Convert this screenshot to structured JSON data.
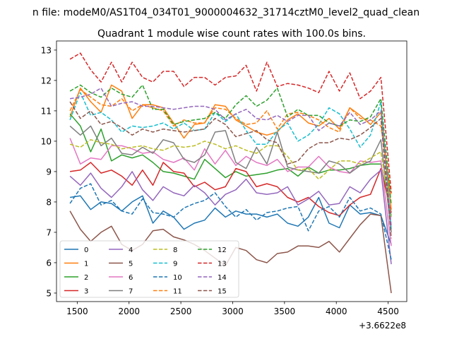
{
  "chart_data": {
    "type": "line",
    "suptitle": "n file: modeM0/AS1T04_034T01_9000004632_31714cztM0_level2_quad_clean",
    "title": "Quadrant 1 module wise count rates with 100.0s bins.",
    "xlabel": "",
    "ylabel": "",
    "x_offset_label": "+3.6622e8",
    "xlim": [
      1300,
      4680
    ],
    "ylim": [
      4.72,
      13.3
    ],
    "xticks": [
      1500,
      2000,
      2500,
      3000,
      3500,
      4000,
      4500
    ],
    "yticks": [
      5,
      6,
      7,
      8,
      9,
      10,
      11,
      12,
      13
    ],
    "x": [
      1430,
      1530,
      1630,
      1730,
      1830,
      1930,
      2030,
      2130,
      2230,
      2330,
      2430,
      2530,
      2630,
      2730,
      2830,
      2930,
      3030,
      3130,
      3230,
      3330,
      3430,
      3530,
      3630,
      3730,
      3830,
      3930,
      4030,
      4130,
      4230,
      4330,
      4430,
      4530
    ],
    "legend_loc": "lower left",
    "legend_ncol": 4,
    "series": [
      {
        "name": "0",
        "color": "#1f77b4",
        "dash": "solid",
        "values": [
          8.15,
          8.2,
          7.75,
          8.0,
          7.95,
          7.7,
          8.0,
          8.2,
          7.3,
          7.7,
          7.5,
          7.1,
          7.3,
          7.4,
          7.8,
          7.5,
          7.7,
          7.6,
          7.6,
          7.5,
          7.6,
          7.3,
          7.2,
          7.5,
          8.15,
          7.3,
          7.15,
          7.9,
          7.6,
          7.65,
          7.55,
          6.6
        ]
      },
      {
        "name": "1",
        "color": "#ff7f0e",
        "dash": "solid",
        "values": [
          10.8,
          11.75,
          11.3,
          10.95,
          11.85,
          11.65,
          10.75,
          11.2,
          11.2,
          11.1,
          10.6,
          10.1,
          10.55,
          10.6,
          11.2,
          11.15,
          10.7,
          10.5,
          10.3,
          10.2,
          10.3,
          10.7,
          10.9,
          10.6,
          10.5,
          10.75,
          10.4,
          11.1,
          10.85,
          10.55,
          10.95,
          7.75
        ]
      },
      {
        "name": "2",
        "color": "#2ca02c",
        "dash": "solid",
        "values": [
          10.9,
          10.5,
          9.65,
          10.4,
          9.35,
          9.55,
          9.45,
          9.55,
          9.3,
          9.0,
          8.95,
          8.85,
          8.75,
          9.4,
          9.1,
          8.8,
          9.0,
          8.85,
          8.9,
          8.95,
          9.05,
          9.1,
          8.85,
          9.15,
          8.95,
          9.05,
          9.05,
          9.1,
          9.2,
          9.25,
          9.25,
          7.55
        ]
      },
      {
        "name": "3",
        "color": "#d62728",
        "dash": "solid",
        "values": [
          9.0,
          9.05,
          9.3,
          8.95,
          9.05,
          8.85,
          8.55,
          9.05,
          8.55,
          9.3,
          9.0,
          8.95,
          8.5,
          8.65,
          8.4,
          8.5,
          9.1,
          9.0,
          8.5,
          8.6,
          8.5,
          8.15,
          8.0,
          8.15,
          7.85,
          7.65,
          7.55,
          7.9,
          8.15,
          8.25,
          9.1,
          7.65
        ]
      },
      {
        "name": "4",
        "color": "#9467bd",
        "dash": "solid",
        "values": [
          8.85,
          8.55,
          8.95,
          8.45,
          8.15,
          8.5,
          9.0,
          8.4,
          8.05,
          8.5,
          8.3,
          8.2,
          8.55,
          8.3,
          7.9,
          8.25,
          8.4,
          8.75,
          8.3,
          8.25,
          8.3,
          8.5,
          7.9,
          8.1,
          8.35,
          7.9,
          7.95,
          8.5,
          8.3,
          8.75,
          9.05,
          5.95
        ]
      },
      {
        "name": "5",
        "color": "#8c564b",
        "dash": "solid",
        "values": [
          7.7,
          7.1,
          6.7,
          7.0,
          7.2,
          6.6,
          6.4,
          6.6,
          7.05,
          7.1,
          6.85,
          6.75,
          6.6,
          6.4,
          6.15,
          5.9,
          6.5,
          6.4,
          6.1,
          6.0,
          6.3,
          6.35,
          6.55,
          6.55,
          6.5,
          6.7,
          6.35,
          6.8,
          7.25,
          7.6,
          7.55,
          5.0
        ]
      },
      {
        "name": "6",
        "color": "#e377c2",
        "dash": "solid",
        "values": [
          10.1,
          9.25,
          9.45,
          9.4,
          9.85,
          9.85,
          9.75,
          9.6,
          9.65,
          9.4,
          9.3,
          9.45,
          9.05,
          9.75,
          9.25,
          9.7,
          9.2,
          9.5,
          9.3,
          9.2,
          9.4,
          9.0,
          9.15,
          9.15,
          9.5,
          9.15,
          9.0,
          8.95,
          9.35,
          9.3,
          9.35,
          6.55
        ]
      },
      {
        "name": "7",
        "color": "#7f7f7f",
        "dash": "solid",
        "values": [
          10.5,
          10.2,
          10.5,
          9.85,
          10.1,
          9.6,
          9.55,
          9.8,
          9.6,
          10.05,
          9.95,
          9.4,
          9.3,
          9.55,
          10.3,
          10.35,
          9.3,
          9.1,
          9.8,
          9.25,
          10.3,
          9.15,
          9.05,
          9.0,
          8.95,
          9.35,
          9.25,
          8.95,
          9.2,
          9.35,
          10.05,
          7.0
        ]
      },
      {
        "name": "8",
        "color": "#bcbd22",
        "dash": "dash",
        "values": [
          9.9,
          9.8,
          10.05,
          9.95,
          9.9,
          9.75,
          9.8,
          9.85,
          9.75,
          9.7,
          9.85,
          9.8,
          9.85,
          10.0,
          9.9,
          9.75,
          9.85,
          9.7,
          9.6,
          9.85,
          9.85,
          9.5,
          9.05,
          9.1,
          8.75,
          9.05,
          9.35,
          9.35,
          9.25,
          9.45,
          9.65,
          7.5
        ]
      },
      {
        "name": "9",
        "color": "#17becf",
        "dash": "dash",
        "values": [
          10.7,
          11.6,
          10.85,
          10.95,
          10.7,
          10.3,
          10.5,
          10.45,
          10.5,
          10.6,
          10.4,
          10.6,
          10.35,
          10.4,
          10.95,
          10.65,
          10.9,
          10.35,
          9.9,
          9.9,
          10.35,
          10.6,
          10.0,
          10.2,
          10.55,
          11.1,
          10.9,
          10.4,
          9.8,
          10.2,
          11.3,
          7.1
        ]
      },
      {
        "name": "10",
        "color": "#1f77b4",
        "dash": "dash",
        "values": [
          7.95,
          8.45,
          8.6,
          7.9,
          8.05,
          7.7,
          7.6,
          8.1,
          7.65,
          7.6,
          7.5,
          7.8,
          7.95,
          8.05,
          8.3,
          7.85,
          7.5,
          7.75,
          7.4,
          7.65,
          7.7,
          7.8,
          7.85,
          7.05,
          7.7,
          7.85,
          7.5,
          8.15,
          7.7,
          7.8,
          7.6,
          6.1
        ]
      },
      {
        "name": "11",
        "color": "#ff7f0e",
        "dash": "dash",
        "values": [
          11.0,
          11.7,
          11.45,
          11.2,
          11.15,
          11.4,
          11.0,
          11.2,
          11.1,
          11.0,
          10.5,
          10.7,
          10.6,
          10.6,
          11.1,
          11.05,
          10.75,
          10.55,
          10.6,
          11.0,
          10.4,
          10.9,
          10.95,
          10.85,
          10.7,
          10.45,
          10.3,
          11.1,
          10.75,
          10.7,
          10.5,
          8.2
        ]
      },
      {
        "name": "12",
        "color": "#2ca02c",
        "dash": "dash",
        "values": [
          11.65,
          11.85,
          11.6,
          11.45,
          11.75,
          11.55,
          11.45,
          11.85,
          11.05,
          11.05,
          10.55,
          10.65,
          10.7,
          10.75,
          10.95,
          10.75,
          11.2,
          11.5,
          11.15,
          11.35,
          11.75,
          10.8,
          11.05,
          10.85,
          10.85,
          10.6,
          10.5,
          10.7,
          10.65,
          10.8,
          11.4,
          7.9
        ]
      },
      {
        "name": "13",
        "color": "#d62728",
        "dash": "dash",
        "values": [
          12.7,
          12.9,
          12.35,
          11.95,
          12.6,
          11.95,
          12.6,
          12.1,
          11.95,
          12.3,
          12.3,
          11.8,
          12.1,
          12.1,
          11.85,
          12.1,
          12.15,
          12.5,
          11.65,
          12.6,
          11.8,
          11.9,
          11.85,
          11.75,
          11.6,
          12.3,
          11.65,
          12.25,
          11.4,
          11.65,
          12.1,
          8.3
        ]
      },
      {
        "name": "14",
        "color": "#9467bd",
        "dash": "dash",
        "values": [
          11.4,
          11.45,
          11.55,
          11.75,
          11.15,
          11.25,
          11.3,
          11.15,
          11.15,
          11.1,
          11.05,
          11.1,
          11.15,
          11.15,
          11.05,
          10.7,
          10.9,
          11.05,
          10.75,
          10.7,
          10.85,
          10.65,
          10.85,
          10.85,
          10.35,
          10.6,
          10.5,
          10.95,
          10.55,
          10.7,
          11.0,
          7.2
        ]
      },
      {
        "name": "15",
        "color": "#8c564b",
        "dash": "dash",
        "values": [
          11.3,
          10.75,
          11.0,
          10.55,
          10.65,
          10.45,
          10.2,
          10.4,
          10.3,
          10.4,
          10.35,
          10.3,
          10.35,
          10.4,
          10.75,
          10.55,
          10.15,
          10.25,
          10.35,
          10.05,
          9.95,
          9.25,
          9.35,
          9.75,
          9.95,
          9.95,
          10.1,
          10.05,
          10.2,
          10.45,
          10.75,
          6.8
        ]
      }
    ]
  }
}
